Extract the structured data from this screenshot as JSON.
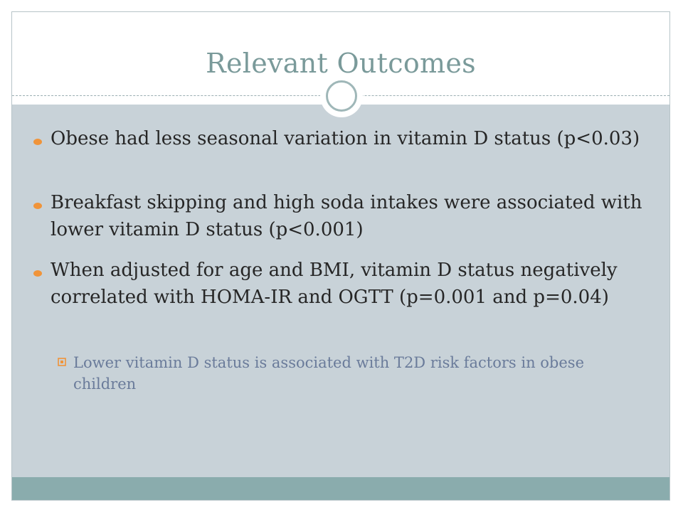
{
  "slide": {
    "title": "Relevant Outcomes",
    "bullets": [
      {
        "text": "Obese had less seasonal variation in vitamin D status (p<0.03)"
      },
      {
        "text": "Breakfast skipping and high soda intakes were associated with lower vitamin D status (p<0.001)"
      },
      {
        "text": "When adjusted for age and BMI, vitamin D status negatively correlated with HOMA-IR and OGTT (p=0.001 and p=0.04)"
      }
    ],
    "sub_bullets": [
      {
        "text": "Lower vitamin D status is associated with T2D risk factors in obese children"
      }
    ]
  },
  "colors": {
    "title": "#7a9a9a",
    "content_background": "#c8d2d8",
    "footer_band": "#8aacad",
    "bullet": "#f0943a",
    "body_text": "#262626",
    "sub_text": "#6a7b9a"
  },
  "icons": {
    "bullet": "orange-dot-icon",
    "sub_bullet": "hollow-square-bullet-icon",
    "divider_ornament": "ring-circle-icon"
  }
}
